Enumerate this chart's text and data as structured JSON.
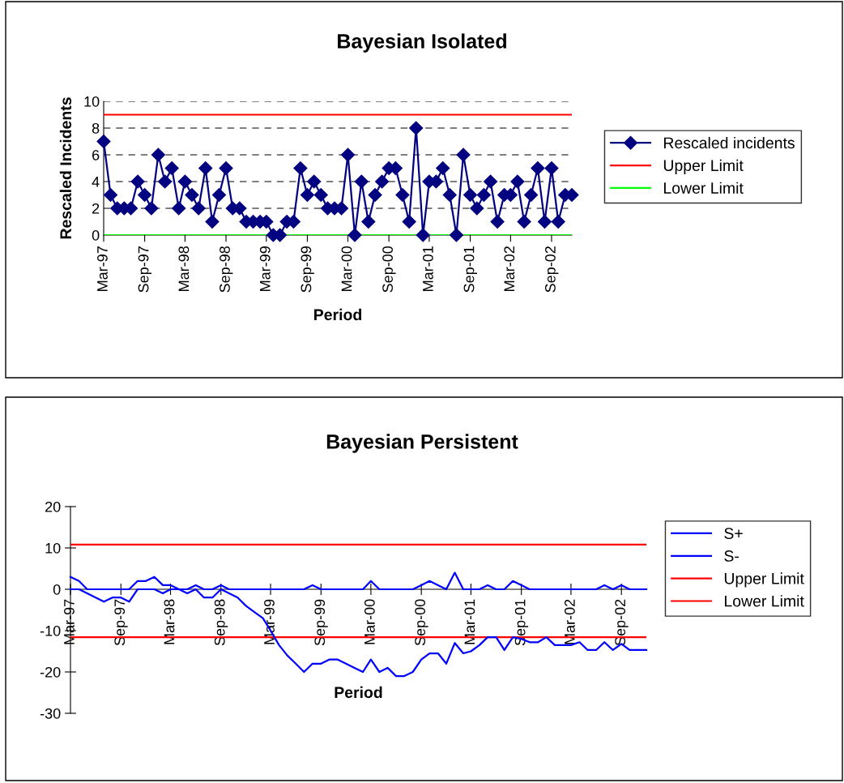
{
  "chart_data": [
    {
      "type": "line",
      "title": "Bayesian Isolated",
      "xlabel": "Period",
      "ylabel": "Rescaled Incidents",
      "x": [
        "1997-03",
        "1997-04",
        "1997-05",
        "1997-06",
        "1997-07",
        "1997-08",
        "1997-09",
        "1997-10",
        "1997-11",
        "1997-12",
        "1998-01",
        "1998-02",
        "1998-03",
        "1998-04",
        "1998-05",
        "1998-06",
        "1998-07",
        "1998-08",
        "1998-09",
        "1998-10",
        "1998-11",
        "1998-12",
        "1999-01",
        "1999-02",
        "1999-03",
        "1999-04",
        "1999-05",
        "1999-06",
        "1999-07",
        "1999-08",
        "1999-09",
        "1999-10",
        "1999-11",
        "1999-12",
        "2000-01",
        "2000-02",
        "2000-03",
        "2000-04",
        "2000-05",
        "2000-06",
        "2000-07",
        "2000-08",
        "2000-09",
        "2000-10",
        "2000-11",
        "2000-12",
        "2001-01",
        "2001-02",
        "2001-03",
        "2001-04",
        "2001-05",
        "2001-06",
        "2001-07",
        "2001-08",
        "2001-09",
        "2001-10",
        "2001-11",
        "2001-12",
        "2002-01",
        "2002-02",
        "2002-03",
        "2002-04",
        "2002-05",
        "2002-06",
        "2002-07",
        "2002-08",
        "2002-09",
        "2002-10",
        "2002-11",
        "2002-12"
      ],
      "series": [
        {
          "name": "Rescaled incidents",
          "color": "#000080",
          "marker": "diamond",
          "values": [
            7,
            3,
            2,
            2,
            2,
            4,
            3,
            2,
            6,
            4,
            5,
            2,
            4,
            3,
            2,
            5,
            1,
            3,
            5,
            2,
            2,
            1,
            1,
            1,
            1,
            0,
            0,
            1,
            1,
            5,
            3,
            4,
            3,
            2,
            2,
            2,
            6,
            0,
            4,
            1,
            3,
            4,
            5,
            5,
            3,
            1,
            8,
            0,
            4,
            4,
            5,
            3,
            0,
            6,
            3,
            2,
            3,
            4,
            1,
            3,
            3,
            4,
            1,
            3,
            5,
            1,
            5,
            1,
            3,
            3
          ]
        }
      ],
      "ref_lines": [
        {
          "axis": "y",
          "value": 9,
          "label": "Upper Limit",
          "color": "#ff0000"
        },
        {
          "axis": "y",
          "value": 0,
          "label": "Lower Limit",
          "color": "#00ff00"
        }
      ],
      "xlim": [
        "1997-03",
        "2002-12"
      ],
      "xticks": [
        {
          "value": "1997-03",
          "label": "Mar-97"
        },
        {
          "value": "1997-09",
          "label": "Sep-97"
        },
        {
          "value": "1998-03",
          "label": "Mar-98"
        },
        {
          "value": "1998-09",
          "label": "Sep-98"
        },
        {
          "value": "1999-03",
          "label": "Mar-99"
        },
        {
          "value": "1999-09",
          "label": "Sep-99"
        },
        {
          "value": "2000-03",
          "label": "Mar-00"
        },
        {
          "value": "2000-09",
          "label": "Sep-00"
        },
        {
          "value": "2001-03",
          "label": "Mar-01"
        },
        {
          "value": "2001-09",
          "label": "Sep-01"
        },
        {
          "value": "2002-03",
          "label": "Mar-02"
        },
        {
          "value": "2002-09",
          "label": "Sep-02"
        }
      ],
      "ylim": [
        0,
        10
      ],
      "yticks": [
        0,
        2,
        4,
        6,
        8,
        10
      ],
      "grid": "y",
      "legend": "right"
    },
    {
      "type": "line",
      "title": "Bayesian Persistent",
      "xlabel": "Period",
      "x": [
        "1997-03",
        "1997-04",
        "1997-05",
        "1997-06",
        "1997-07",
        "1997-08",
        "1997-09",
        "1997-10",
        "1997-11",
        "1997-12",
        "1998-01",
        "1998-02",
        "1998-03",
        "1998-04",
        "1998-05",
        "1998-06",
        "1998-07",
        "1998-08",
        "1998-09",
        "1998-10",
        "1998-11",
        "1998-12",
        "1999-01",
        "1999-02",
        "1999-03",
        "1999-04",
        "1999-05",
        "1999-06",
        "1999-07",
        "1999-08",
        "1999-09",
        "1999-10",
        "1999-11",
        "1999-12",
        "2000-01",
        "2000-02",
        "2000-03",
        "2000-04",
        "2000-05",
        "2000-06",
        "2000-07",
        "2000-08",
        "2000-09",
        "2000-10",
        "2000-11",
        "2000-12",
        "2001-01",
        "2001-02",
        "2001-03",
        "2001-04",
        "2001-05",
        "2001-06",
        "2001-07",
        "2001-08",
        "2001-09",
        "2001-10",
        "2001-11",
        "2001-12",
        "2002-01",
        "2002-02",
        "2002-03",
        "2002-04",
        "2002-05",
        "2002-06",
        "2002-07",
        "2002-08",
        "2002-09",
        "2002-10",
        "2002-11",
        "2002-12"
      ],
      "series": [
        {
          "name": "S+",
          "color": "#0000ff",
          "values": [
            3,
            2,
            0,
            0,
            0,
            0,
            0,
            0,
            2,
            2,
            3,
            1,
            1,
            0,
            0,
            1,
            0,
            0,
            1,
            0,
            0,
            0,
            0,
            0,
            0,
            0,
            0,
            0,
            0,
            1,
            0,
            0,
            0,
            0,
            0,
            0,
            2,
            0,
            0,
            0,
            0,
            0,
            1,
            2,
            1,
            0,
            4,
            0,
            0,
            0,
            1,
            0,
            0,
            2,
            1,
            0,
            0,
            0,
            0,
            0,
            0,
            0,
            0,
            0,
            1,
            0,
            1,
            0,
            0,
            0
          ]
        },
        {
          "name": "S-",
          "color": "#0000ff",
          "values": [
            0,
            0,
            -1,
            -2,
            -3,
            -2,
            -2,
            -3,
            0,
            0,
            0,
            -1,
            0,
            0,
            -1,
            0,
            -2,
            -2,
            0,
            -1,
            -2,
            -4,
            -5.5,
            -7,
            -10,
            -13.5,
            -16,
            -18,
            -20,
            -18,
            -18,
            -17,
            -17,
            -18,
            -19,
            -20,
            -17,
            -20,
            -19,
            -21,
            -21,
            -20,
            -17,
            -15.5,
            -15.5,
            -18,
            -13,
            -15.5,
            -15,
            -13.5,
            -11.6,
            -11.6,
            -14.7,
            -11.6,
            -12,
            -12.8,
            -12.8,
            -11.6,
            -13.5,
            -13.5,
            -13.5,
            -12.8,
            -14.7,
            -14.7,
            -12.8,
            -14.7,
            -13.2,
            -14.7,
            -14.7,
            -14.7
          ]
        }
      ],
      "ref_lines": [
        {
          "axis": "y",
          "value": 10.8,
          "label": "Upper Limit",
          "color": "#ff0000"
        },
        {
          "axis": "y",
          "value": -11.6,
          "label": "Lower Limit",
          "color": "#ff0000"
        }
      ],
      "xlim": [
        "1997-03",
        "2002-12"
      ],
      "xticks": [
        {
          "value": "1997-03",
          "label": "Mar-97"
        },
        {
          "value": "1997-09",
          "label": "Sep-97"
        },
        {
          "value": "1998-03",
          "label": "Mar-98"
        },
        {
          "value": "1998-09",
          "label": "Sep-98"
        },
        {
          "value": "1999-03",
          "label": "Mar-99"
        },
        {
          "value": "1999-09",
          "label": "Sep-99"
        },
        {
          "value": "2000-03",
          "label": "Mar-00"
        },
        {
          "value": "2000-09",
          "label": "Sep-00"
        },
        {
          "value": "2001-03",
          "label": "Mar-01"
        },
        {
          "value": "2001-09",
          "label": "Sep-01"
        },
        {
          "value": "2002-03",
          "label": "Mar-02"
        },
        {
          "value": "2002-09",
          "label": "Sep-02"
        }
      ],
      "ylim": [
        -30,
        20
      ],
      "yticks": [
        -30,
        -20,
        -10,
        0,
        10,
        20
      ],
      "grid": false,
      "legend": "right"
    }
  ]
}
